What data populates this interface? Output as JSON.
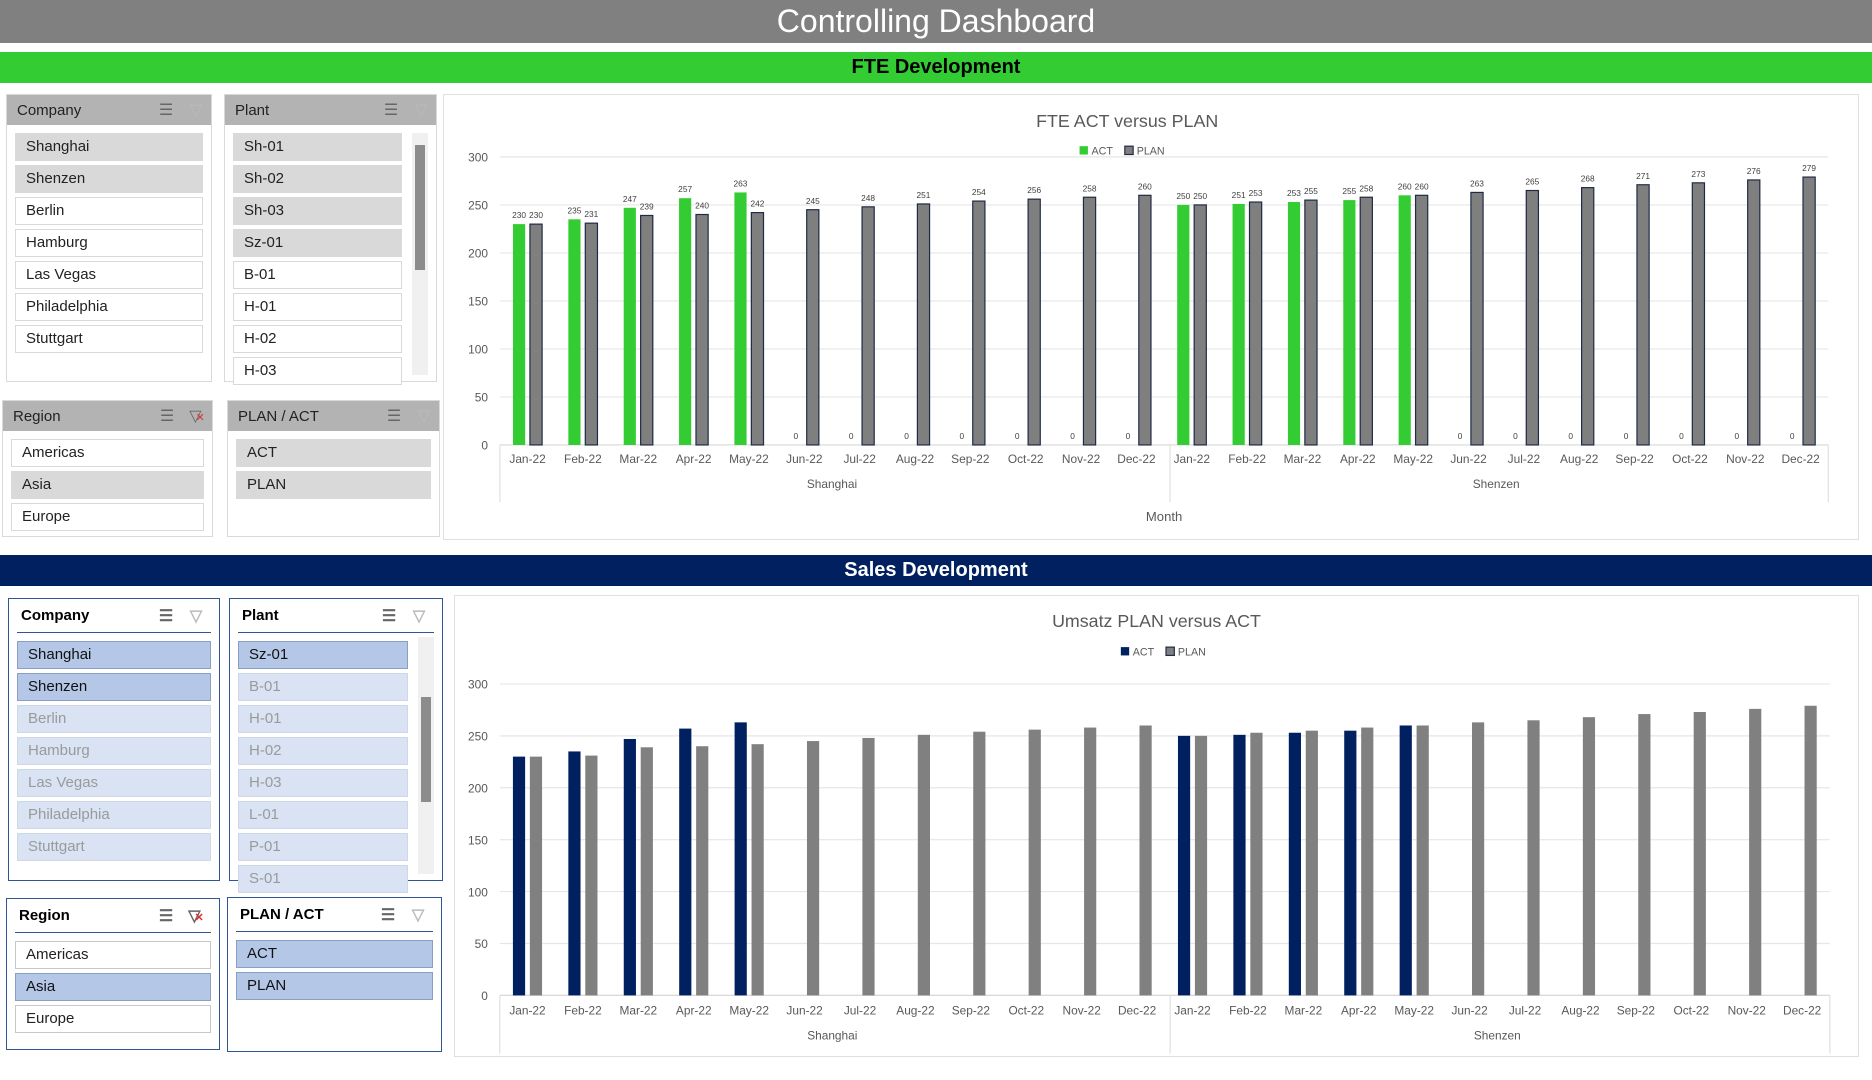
{
  "title": "Controlling Dashboard",
  "fte": {
    "band": "FTE Development",
    "slicers": [
      {
        "id": "company",
        "title": "Company",
        "items": [
          {
            "label": "Shanghai",
            "state": "sel"
          },
          {
            "label": "Shenzen",
            "state": "sel"
          },
          {
            "label": "Berlin",
            "state": ""
          },
          {
            "label": "Hamburg",
            "state": ""
          },
          {
            "label": "Las Vegas",
            "state": ""
          },
          {
            "label": "Philadelphia",
            "state": ""
          },
          {
            "label": "Stuttgart",
            "state": ""
          }
        ],
        "filter_active": false
      },
      {
        "id": "plant",
        "title": "Plant",
        "items": [
          {
            "label": "Sh-01",
            "state": "sel"
          },
          {
            "label": "Sh-02",
            "state": "sel"
          },
          {
            "label": "Sh-03",
            "state": "sel"
          },
          {
            "label": "Sz-01",
            "state": "sel"
          },
          {
            "label": "B-01",
            "state": ""
          },
          {
            "label": "H-01",
            "state": ""
          },
          {
            "label": "H-02",
            "state": ""
          },
          {
            "label": "H-03",
            "state": ""
          }
        ],
        "filter_active": false,
        "scroll": true
      },
      {
        "id": "region",
        "title": "Region",
        "items": [
          {
            "label": "Americas",
            "state": ""
          },
          {
            "label": "Asia",
            "state": "sel"
          },
          {
            "label": "Europe",
            "state": ""
          }
        ],
        "filter_active": true
      },
      {
        "id": "planact",
        "title": "PLAN / ACT",
        "items": [
          {
            "label": "ACT",
            "state": "sel"
          },
          {
            "label": "PLAN",
            "state": "sel"
          }
        ],
        "filter_active": false
      }
    ]
  },
  "sales": {
    "band": "Sales Development",
    "slicers": [
      {
        "id": "company",
        "title": "Company",
        "items": [
          {
            "label": "Shanghai",
            "state": "sel"
          },
          {
            "label": "Shenzen",
            "state": "sel"
          },
          {
            "label": "Berlin",
            "state": "dis"
          },
          {
            "label": "Hamburg",
            "state": "dis"
          },
          {
            "label": "Las Vegas",
            "state": "dis"
          },
          {
            "label": "Philadelphia",
            "state": "dis"
          },
          {
            "label": "Stuttgart",
            "state": "dis"
          }
        ],
        "filter_active": false
      },
      {
        "id": "plant",
        "title": "Plant",
        "items": [
          {
            "label": "Sz-01",
            "state": "sel"
          },
          {
            "label": "B-01",
            "state": "dis"
          },
          {
            "label": "H-01",
            "state": "dis"
          },
          {
            "label": "H-02",
            "state": "dis"
          },
          {
            "label": "H-03",
            "state": "dis"
          },
          {
            "label": "L-01",
            "state": "dis"
          },
          {
            "label": "P-01",
            "state": "dis"
          },
          {
            "label": "S-01",
            "state": "dis"
          }
        ],
        "filter_active": false,
        "scroll": true
      },
      {
        "id": "region",
        "title": "Region",
        "items": [
          {
            "label": "Americas",
            "state": ""
          },
          {
            "label": "Asia",
            "state": "sel"
          },
          {
            "label": "Europe",
            "state": ""
          }
        ],
        "filter_active": true
      },
      {
        "id": "planact",
        "title": "PLAN / ACT",
        "items": [
          {
            "label": "ACT",
            "state": "sel"
          },
          {
            "label": "PLAN",
            "state": "sel"
          }
        ],
        "filter_active": false
      }
    ]
  },
  "chart_data": [
    {
      "type": "bar",
      "title": "FTE ACT versus PLAN",
      "xlabel": "Month",
      "ylabel": "",
      "ylim": [
        0,
        300
      ],
      "yticks": [
        0,
        50,
        100,
        150,
        200,
        250,
        300
      ],
      "legend": "top-center",
      "data_labels": true,
      "groups": [
        "Shanghai",
        "Shenzen"
      ],
      "categories": [
        "Jan-22",
        "Feb-22",
        "Mar-22",
        "Apr-22",
        "May-22",
        "Jun-22",
        "Jul-22",
        "Aug-22",
        "Sep-22",
        "Oct-22",
        "Nov-22",
        "Dec-22"
      ],
      "series": [
        {
          "name": "ACT",
          "color": "#33cc33",
          "values": [
            [
              230,
              235,
              247,
              257,
              263,
              0,
              0,
              0,
              0,
              0,
              0,
              0
            ],
            [
              250,
              251,
              253,
              255,
              260,
              0,
              0,
              0,
              0,
              0,
              0,
              0
            ]
          ]
        },
        {
          "name": "PLAN",
          "color": "#7f7f7f",
          "values": [
            [
              230,
              231,
              239,
              240,
              242,
              245,
              248,
              251,
              254,
              256,
              258,
              260
            ],
            [
              250,
              253,
              255,
              258,
              260,
              263,
              265,
              268,
              271,
              273,
              276,
              279
            ]
          ]
        }
      ]
    },
    {
      "type": "bar",
      "title": "Umsatz PLAN versus ACT",
      "xlabel": "",
      "ylabel": "",
      "ylim": [
        0,
        300
      ],
      "yticks": [
        0,
        50,
        100,
        150,
        200,
        250,
        300
      ],
      "legend": "top-center",
      "data_labels": false,
      "groups": [
        "Shanghai",
        "Shenzen"
      ],
      "categories": [
        "Jan-22",
        "Feb-22",
        "Mar-22",
        "Apr-22",
        "May-22",
        "Jun-22",
        "Jul-22",
        "Aug-22",
        "Sep-22",
        "Oct-22",
        "Nov-22",
        "Dec-22"
      ],
      "series": [
        {
          "name": "ACT",
          "color": "#002060",
          "values": [
            [
              230,
              235,
              247,
              257,
              263,
              0,
              0,
              0,
              0,
              0,
              0,
              0
            ],
            [
              250,
              251,
              253,
              255,
              260,
              0,
              0,
              0,
              0,
              0,
              0,
              0
            ]
          ]
        },
        {
          "name": "PLAN",
          "color": "#808080",
          "values": [
            [
              230,
              231,
              239,
              240,
              242,
              245,
              248,
              251,
              254,
              256,
              258,
              260
            ],
            [
              250,
              253,
              255,
              258,
              260,
              263,
              265,
              268,
              271,
              273,
              276,
              279
            ]
          ]
        }
      ]
    }
  ]
}
